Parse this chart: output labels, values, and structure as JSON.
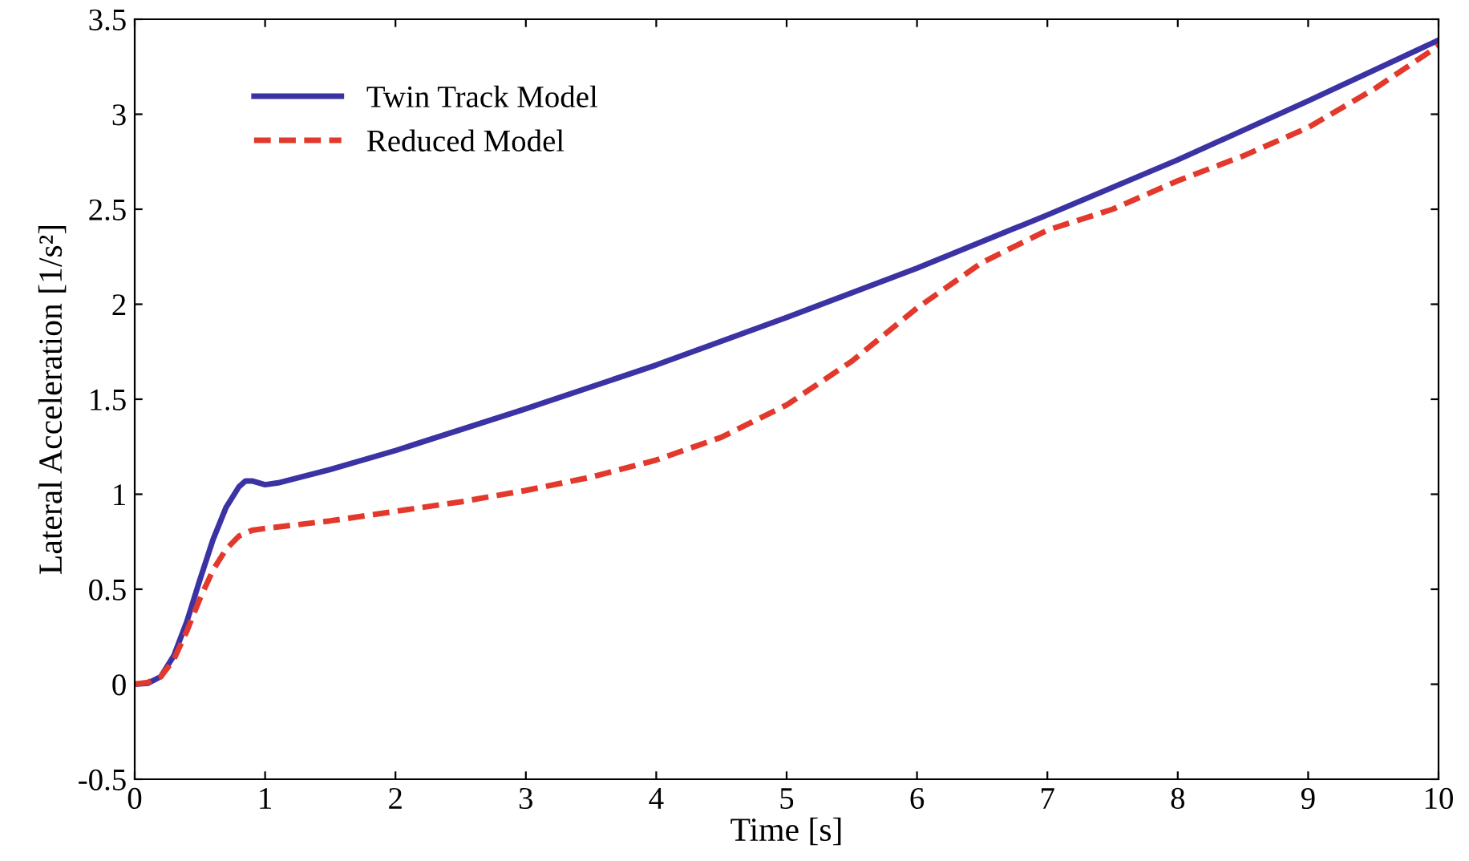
{
  "chart_data": {
    "type": "line",
    "xlabel": "Time [s]",
    "ylabel": "Lateral Acceleration [1/s²]",
    "xlim": [
      0,
      10
    ],
    "ylim": [
      -0.5,
      3.5
    ],
    "xticks": [
      0,
      1,
      2,
      3,
      4,
      5,
      6,
      7,
      8,
      9,
      10
    ],
    "yticks": [
      {
        "value": -0.5,
        "label": "-0.5"
      },
      0,
      0.5,
      1,
      1.5,
      2,
      2.5,
      3,
      3.5
    ],
    "grid": false,
    "legend": "top left",
    "series": [
      {
        "name": "Twin Track Model",
        "color": "#3b33a3",
        "line_style": "solid",
        "x": [
          0,
          0.1,
          0.2,
          0.3,
          0.4,
          0.5,
          0.6,
          0.7,
          0.8,
          0.85,
          0.9,
          1.0,
          1.1,
          1.5,
          2,
          3,
          4,
          5,
          6,
          7,
          8,
          9,
          10
        ],
        "values": [
          0,
          0.005,
          0.04,
          0.15,
          0.33,
          0.55,
          0.76,
          0.93,
          1.04,
          1.07,
          1.07,
          1.05,
          1.06,
          1.13,
          1.23,
          1.45,
          1.68,
          1.93,
          2.19,
          2.47,
          2.76,
          3.07,
          3.39
        ]
      },
      {
        "name": "Reduced Model",
        "color": "#e3392c",
        "line_style": "dashed",
        "x": [
          0,
          0.1,
          0.2,
          0.3,
          0.4,
          0.5,
          0.6,
          0.7,
          0.8,
          0.9,
          1.0,
          1.5,
          2,
          2.5,
          3,
          3.5,
          4,
          4.5,
          5,
          5.5,
          6,
          6.5,
          7,
          7.5,
          8,
          8.5,
          9,
          9.5,
          10
        ],
        "values": [
          0,
          0.01,
          0.04,
          0.13,
          0.28,
          0.45,
          0.6,
          0.71,
          0.78,
          0.81,
          0.82,
          0.86,
          0.91,
          0.96,
          1.02,
          1.09,
          1.18,
          1.3,
          1.47,
          1.7,
          1.98,
          2.22,
          2.39,
          2.5,
          2.65,
          2.78,
          2.93,
          3.13,
          3.36
        ]
      }
    ]
  }
}
